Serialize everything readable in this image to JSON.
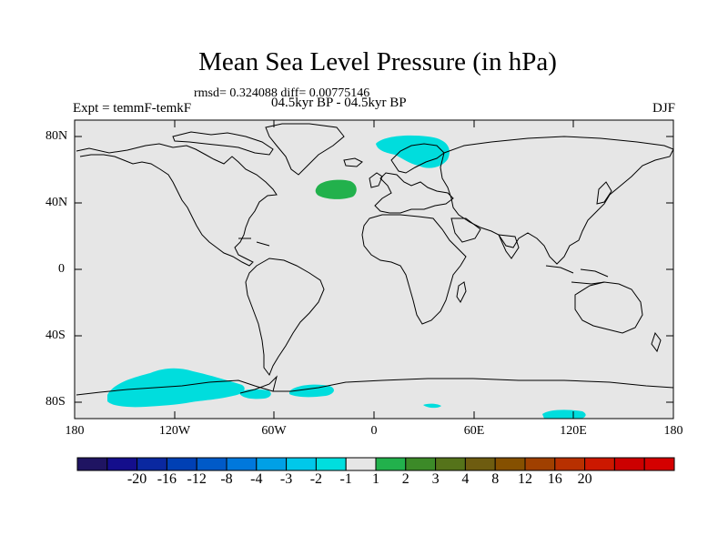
{
  "title": "Mean Sea Level Pressure (in hPa)",
  "stats": "rmsd= 0.324088 diff= 0.00775146",
  "subtitle": "04.5kyr BP - 04.5kyr BP",
  "left_label": "Expt = temmF-temkF",
  "right_label": "DJF",
  "colors": {
    "background": "#e6e6e6",
    "coast": "#000000",
    "cyan": "#00dddd",
    "green": "#22b14c"
  },
  "lat_labels": [
    "80N",
    "40N",
    "0",
    "40S",
    "80S"
  ],
  "lon_labels": [
    "180",
    "120W",
    "60W",
    "0",
    "60E",
    "120E",
    "180"
  ],
  "colorbar": {
    "colors": [
      "#1f1462",
      "#140e8c",
      "#0a28a0",
      "#0040b4",
      "#005ac8",
      "#0078dc",
      "#00a0e6",
      "#00c8ea",
      "#00dede",
      "#e6e6e6",
      "#22b14c",
      "#3c8a28",
      "#55731a",
      "#6e5c10",
      "#855000",
      "#a04000",
      "#b83000",
      "#cc1800",
      "#cc0000",
      "#d40000"
    ],
    "labels": [
      "-20",
      "-16",
      "-12",
      "-8",
      "-4",
      "-3",
      "-2",
      "-1",
      "1",
      "2",
      "3",
      "4",
      "8",
      "12",
      "16",
      "20"
    ]
  }
}
